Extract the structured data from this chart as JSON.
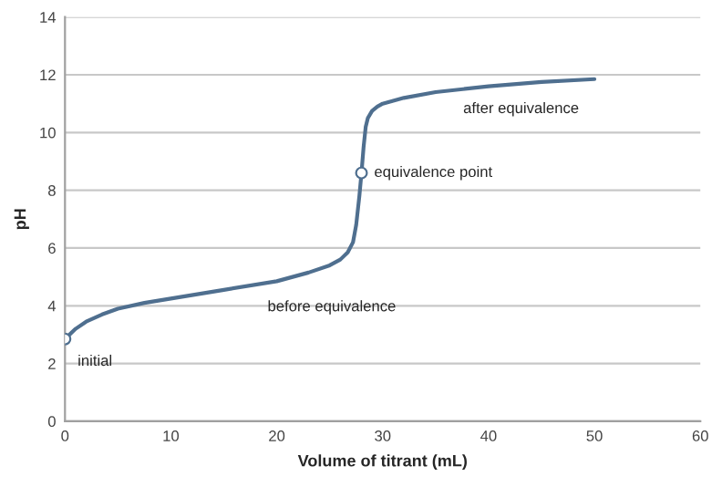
{
  "chart_data": {
    "type": "line",
    "xlabel": "Volume of titrant (mL)",
    "ylabel": "pH",
    "xlim": [
      0,
      60
    ],
    "xticks": [
      0,
      10,
      20,
      30,
      40,
      50,
      60
    ],
    "ylim": [
      0,
      14
    ],
    "yticks": [
      0,
      2,
      4,
      6,
      8,
      10,
      12,
      14
    ],
    "grid": "y",
    "legend": false,
    "series": [
      {
        "color": "#4f6f8f",
        "marker": "none",
        "line_style": "solid",
        "x": [
          0,
          1,
          2,
          3.5,
          5,
          7.5,
          10,
          15,
          20,
          23,
          25,
          26,
          26.7,
          27.2,
          27.5,
          27.8,
          28,
          28.2,
          28.4,
          28.6,
          29,
          29.5,
          30,
          31,
          32,
          35,
          40,
          45,
          50
        ],
        "values": [
          2.85,
          3.2,
          3.45,
          3.7,
          3.9,
          4.1,
          4.25,
          4.55,
          4.85,
          5.15,
          5.4,
          5.6,
          5.85,
          6.2,
          6.8,
          7.8,
          8.6,
          9.5,
          10.2,
          10.5,
          10.75,
          10.9,
          11.0,
          11.1,
          11.2,
          11.4,
          11.6,
          11.75,
          11.85
        ]
      },
      {
        "type": "scatter",
        "color": "#4f6f8f",
        "marker": "circle",
        "x": [
          0,
          28
        ],
        "values": [
          2.85,
          8.6
        ]
      }
    ],
    "annotations": [
      {
        "text": "initial",
        "x": 0,
        "y": 2.85
      },
      {
        "text": "before equivalence",
        "x": 22,
        "y": 5.0
      },
      {
        "text": "equivalence point",
        "x": 28,
        "y": 8.6
      },
      {
        "text": "after equivalence",
        "x": 40,
        "y": 11.6
      }
    ]
  }
}
